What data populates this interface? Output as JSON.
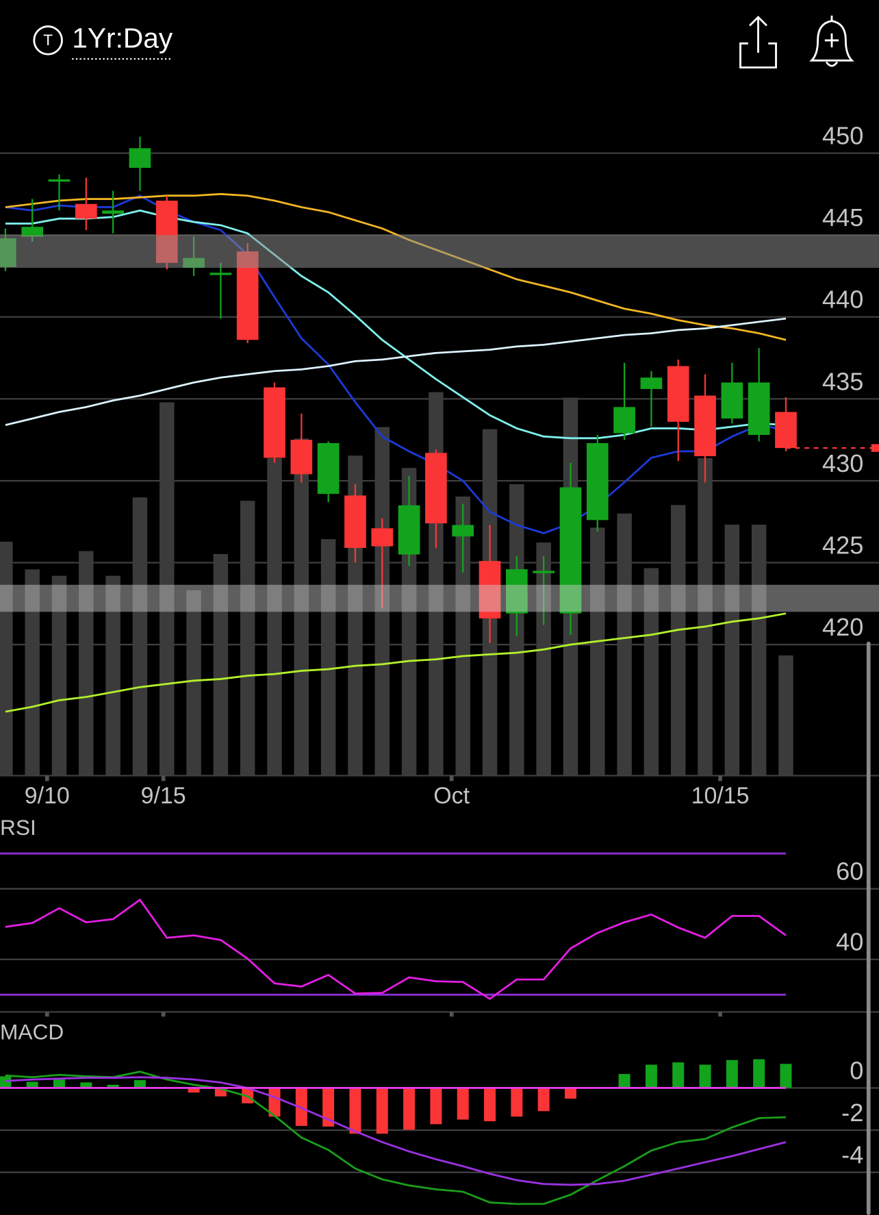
{
  "header": {
    "title": "1Yr:Day",
    "icon_letter": "T"
  },
  "chart_data": [
    {
      "type": "candlestick",
      "categories": [
        null,
        null,
        null,
        null,
        null,
        null,
        null,
        null,
        null,
        null,
        null,
        null,
        null,
        null,
        null,
        null,
        null,
        null,
        null,
        null,
        null,
        null,
        null,
        null,
        null,
        null,
        null,
        null,
        null,
        null
      ],
      "open": [
        443.05,
        444.9,
        448.3,
        446.9,
        446.3,
        449.1,
        447.1,
        443.0,
        442.6,
        444.0,
        435.7,
        432.5,
        429.2,
        429.1,
        427.1,
        425.5,
        431.7,
        426.6,
        425.1,
        421.9,
        424.4,
        421.9,
        427.6,
        432.9,
        435.6,
        437.0,
        435.2,
        433.8,
        432.8,
        434.2
      ],
      "high": [
        445.4,
        447.2,
        448.7,
        448.5,
        447.7,
        451.0,
        447.4,
        444.9,
        443.3,
        444.5,
        436.0,
        434.1,
        432.4,
        429.8,
        427.7,
        430.3,
        431.9,
        428.6,
        427.3,
        425.4,
        425.4,
        431.1,
        432.8,
        437.2,
        436.7,
        437.4,
        436.5,
        437.2,
        438.1,
        435.1
      ],
      "low": [
        442.8,
        444.6,
        446.5,
        445.3,
        445.1,
        447.7,
        442.9,
        442.5,
        439.9,
        438.4,
        431.1,
        429.9,
        428.7,
        425.0,
        422.2,
        424.8,
        425.9,
        424.4,
        420.1,
        420.5,
        421.2,
        420.6,
        426.9,
        432.5,
        433.3,
        431.2,
        429.9,
        433.5,
        432.4,
        431.8
      ],
      "close": [
        444.8,
        445.5,
        448.4,
        446.0,
        446.5,
        450.3,
        443.3,
        443.6,
        442.7,
        438.6,
        431.4,
        430.4,
        432.3,
        425.9,
        426.0,
        428.5,
        427.4,
        427.3,
        421.6,
        424.6,
        424.5,
        429.6,
        432.3,
        434.5,
        436.3,
        433.6,
        431.5,
        436.0,
        436.0,
        432.0
      ],
      "up_color": "#12a41c",
      "down_color": "#fb3535",
      "series": [
        {
          "color": "#1c3ad8",
          "values": [
            446.7,
            446.5,
            446.8,
            446.7,
            446.7,
            447.4,
            446.5,
            445.8,
            445.3,
            443.8,
            441.2,
            438.7,
            437.1,
            434.8,
            432.7,
            431.8,
            431.0,
            430.0,
            428.1,
            427.3,
            426.8,
            427.4,
            428.5,
            429.9,
            431.4,
            431.8,
            431.8,
            432.7,
            433.4,
            433.1
          ]
        },
        {
          "color": "#7ff0ec",
          "values": [
            445.7,
            445.7,
            446.0,
            446.0,
            446.1,
            446.5,
            446.1,
            445.8,
            445.6,
            445.1,
            443.8,
            442.5,
            441.5,
            440.1,
            438.6,
            437.4,
            436.2,
            435.1,
            434.0,
            433.2,
            432.7,
            432.6,
            432.6,
            432.8,
            433.2,
            433.2,
            433.1,
            433.3,
            433.5,
            433.4
          ]
        },
        {
          "color": "#f2b624",
          "values": [
            446.7,
            446.9,
            447.1,
            447.2,
            447.2,
            447.3,
            447.4,
            447.4,
            447.5,
            447.4,
            447.1,
            446.7,
            446.4,
            445.9,
            445.4,
            444.7,
            444.1,
            443.5,
            442.9,
            442.3,
            441.9,
            441.5,
            441.0,
            440.5,
            440.2,
            439.8,
            439.5,
            439.3,
            439.0,
            438.6
          ]
        },
        {
          "color": "#dcf2ff",
          "values": [
            433.4,
            433.8,
            434.2,
            434.5,
            434.9,
            435.2,
            435.6,
            436.0,
            436.3,
            436.5,
            436.7,
            436.8,
            437.0,
            437.3,
            437.4,
            437.6,
            437.8,
            437.9,
            438.0,
            438.2,
            438.3,
            438.5,
            438.7,
            438.9,
            439.0,
            439.2,
            439.3,
            439.5,
            439.7,
            439.9
          ]
        },
        {
          "color": "#b2ef2c",
          "values": [
            415.9,
            416.2,
            416.6,
            416.8,
            417.1,
            417.4,
            417.6,
            417.8,
            417.9,
            418.1,
            418.2,
            418.4,
            418.5,
            418.7,
            418.8,
            419.0,
            419.1,
            419.3,
            419.4,
            419.5,
            419.7,
            420.0,
            420.2,
            420.4,
            420.6,
            420.9,
            421.1,
            421.4,
            421.6,
            421.9
          ]
        }
      ],
      "volume": {
        "color": "#3b3b3b",
        "ylim": [
          0,
          100
        ],
        "values": [
          54.9,
          48.4,
          46.9,
          52.7,
          46.9,
          65.3,
          87.6,
          43.5,
          52.0,
          64.5,
          74.5,
          79.1,
          55.5,
          75.1,
          81.8,
          72.2,
          90.0,
          65.5,
          81.3,
          68.4,
          54.7,
          88.7,
          58.2,
          61.5,
          48.7,
          63.5,
          74.5,
          58.9,
          58.9,
          28.2
        ]
      },
      "bands": [
        {
          "from": 443.0,
          "to": 445.0,
          "color": "#8a8a8a",
          "opacity": 0.55
        },
        {
          "from": 422.0,
          "to": 423.65,
          "color": "#d0d0d0",
          "opacity": 0.45
        }
      ],
      "last_price": {
        "value": 432.0,
        "color": "#fb3535"
      },
      "xlim": [
        -0.2,
        32.46
      ],
      "xticks": [
        {
          "value": 1.55,
          "label": "9/10"
        },
        {
          "value": 5.87,
          "label": "9/15"
        },
        {
          "value": 16.58,
          "label": "Oct"
        },
        {
          "value": 26.56,
          "label": "10/15"
        }
      ],
      "ylim": [
        412,
        454
      ],
      "yticks": [
        420,
        425,
        430,
        435,
        440,
        445,
        450
      ],
      "grid": true
    },
    {
      "type": "line",
      "title": "RSI",
      "series": [
        {
          "color": "#e21ee2",
          "values": [
            49.2,
            50.3,
            54.5,
            50.5,
            51.4,
            56.9,
            46.1,
            46.8,
            45.5,
            40.2,
            33.2,
            32.3,
            35.6,
            30.3,
            30.5,
            34.9,
            33.8,
            33.6,
            28.8,
            34.3,
            34.3,
            43.1,
            47.5,
            50.5,
            52.7,
            49.0,
            46.1,
            52.3,
            52.3,
            46.8
          ]
        }
      ],
      "reference_lines": [
        {
          "value": 70,
          "color": "#8c2fd6"
        },
        {
          "value": 30,
          "color": "#8c2fd6"
        }
      ],
      "ylim": [
        25.1,
        82.4
      ],
      "yticks": [
        40,
        60
      ],
      "grid": true
    },
    {
      "type": "macd",
      "title": "MACD",
      "histogram": {
        "up_color": "#12a41c",
        "down_color": "#fb3535",
        "values": [
          0.55,
          0.29,
          0.4,
          0.26,
          0.15,
          0.37,
          -0.04,
          -0.22,
          -0.4,
          -0.73,
          -1.36,
          -1.8,
          -1.83,
          -2.17,
          -2.17,
          -1.98,
          -1.72,
          -1.5,
          -1.58,
          -1.36,
          -1.1,
          -0.51,
          0.04,
          0.66,
          1.1,
          1.21,
          1.1,
          1.32,
          1.36,
          1.14
        ]
      },
      "series": [
        {
          "color": "#1a9e1a",
          "values": [
            0.59,
            0.51,
            0.62,
            0.55,
            0.51,
            0.77,
            0.4,
            0.15,
            -0.04,
            -0.4,
            -1.32,
            -2.35,
            -2.94,
            -3.82,
            -4.33,
            -4.62,
            -4.81,
            -4.92,
            -5.43,
            -5.5,
            -5.5,
            -5.06,
            -4.37,
            -3.71,
            -2.97,
            -2.57,
            -2.42,
            -1.87,
            -1.43,
            -1.39
          ]
        },
        {
          "color": "#9a32e0",
          "values": [
            0.33,
            0.4,
            0.44,
            0.48,
            0.48,
            0.51,
            0.48,
            0.4,
            0.26,
            0,
            -0.44,
            -0.95,
            -1.5,
            -2.06,
            -2.57,
            -3.01,
            -3.38,
            -3.71,
            -4.07,
            -4.37,
            -4.55,
            -4.59,
            -4.55,
            -4.4,
            -4.11,
            -3.82,
            -3.52,
            -3.23,
            -2.9,
            -2.57
          ]
        }
      ],
      "reference_lines": [
        {
          "value": 0,
          "color": "#e43ce4"
        }
      ],
      "ylim": [
        -6.02,
        3.16
      ],
      "yticks": [
        0,
        -2,
        -4
      ],
      "grid": true
    }
  ]
}
